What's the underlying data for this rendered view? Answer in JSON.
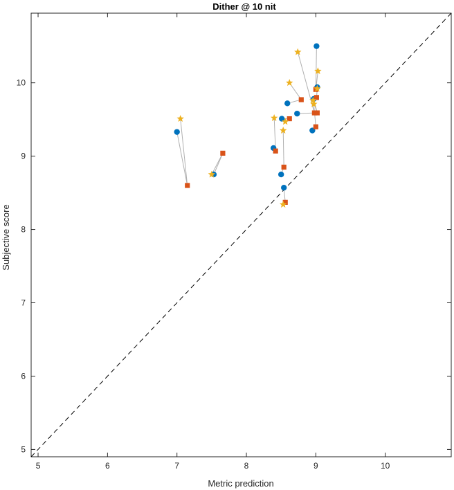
{
  "chart_data": {
    "type": "scatter",
    "title": "Dither @ 10 nit",
    "xlabel": "Metric prediction",
    "ylabel": "Subjective score",
    "xlim": [
      4.9,
      10.95
    ],
    "ylim": [
      4.9,
      10.95
    ],
    "xticks": [
      5,
      6,
      7,
      8,
      9,
      10
    ],
    "yticks": [
      5,
      6,
      7,
      8,
      9,
      10
    ],
    "grid": false,
    "legend": "none",
    "reference_line": {
      "type": "identity",
      "style": "dashed",
      "color": "#000000"
    },
    "connector_color": "#b0b0b0",
    "series": [
      {
        "marker": "circle",
        "color": "#0072BD",
        "points": [
          {
            "x": 7.0,
            "y": 9.33
          },
          {
            "x": 7.53,
            "y": 8.75
          },
          {
            "x": 8.39,
            "y": 9.11
          },
          {
            "x": 8.51,
            "y": 9.51
          },
          {
            "x": 8.5,
            "y": 8.75
          },
          {
            "x": 8.54,
            "y": 8.57
          },
          {
            "x": 8.59,
            "y": 9.72
          },
          {
            "x": 8.73,
            "y": 9.58
          },
          {
            "x": 8.95,
            "y": 9.35
          },
          {
            "x": 8.97,
            "y": 9.78
          },
          {
            "x": 9.01,
            "y": 10.5
          },
          {
            "x": 9.02,
            "y": 9.94
          }
        ]
      },
      {
        "marker": "square",
        "color": "#D95319",
        "points": [
          {
            "x": 7.15,
            "y": 8.6
          },
          {
            "x": 7.66,
            "y": 9.04
          },
          {
            "x": 8.42,
            "y": 9.07
          },
          {
            "x": 8.62,
            "y": 9.51
          },
          {
            "x": 8.54,
            "y": 8.85
          },
          {
            "x": 8.56,
            "y": 8.37
          },
          {
            "x": 8.79,
            "y": 9.77
          },
          {
            "x": 8.98,
            "y": 9.59
          },
          {
            "x": 9.0,
            "y": 9.4
          },
          {
            "x": 9.02,
            "y": 9.59
          },
          {
            "x": 9.0,
            "y": 9.91
          },
          {
            "x": 9.01,
            "y": 9.8
          }
        ]
      },
      {
        "marker": "star",
        "color": "#EDB120",
        "points": [
          {
            "x": 7.05,
            "y": 9.51
          },
          {
            "x": 7.5,
            "y": 8.75
          },
          {
            "x": 8.4,
            "y": 9.52
          },
          {
            "x": 8.56,
            "y": 9.47
          },
          {
            "x": 8.53,
            "y": 9.35
          },
          {
            "x": 8.53,
            "y": 8.34
          },
          {
            "x": 8.62,
            "y": 10.0
          },
          {
            "x": 8.74,
            "y": 10.42
          },
          {
            "x": 8.97,
            "y": 9.71
          },
          {
            "x": 8.96,
            "y": 9.76
          },
          {
            "x": 9.03,
            "y": 10.16
          },
          {
            "x": 9.02,
            "y": 9.92
          }
        ]
      }
    ]
  }
}
